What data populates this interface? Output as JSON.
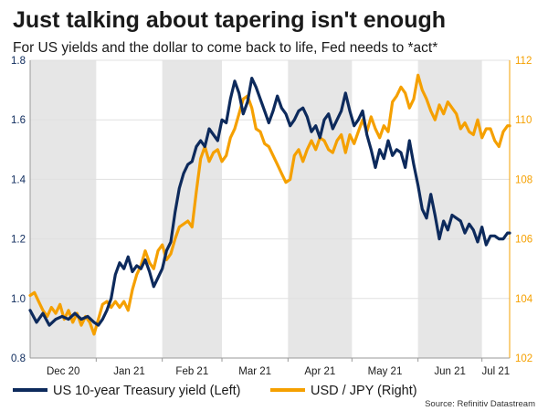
{
  "chart_data": {
    "type": "line",
    "title": "Just talking about tapering isn't enough",
    "subtitle": "For US yields and the dollar to come back to life, Fed needs to *act*",
    "source": "Source: Refinitiv Datastream",
    "colors": {
      "left": "#0d2a5c",
      "right": "#f5a000",
      "shade": "#e6e6e6",
      "grid": "#e0e0e0",
      "axis": "#999999"
    },
    "x_labels": [
      "Dec 20",
      "Jan 21",
      "Feb 21",
      "Mar 21",
      "Apr 21",
      "May 21",
      "Jun 21",
      "Jul 21"
    ],
    "x_range": [
      0,
      225
    ],
    "shaded_bands": [
      [
        0,
        31
      ],
      [
        62,
        90
      ],
      [
        121,
        151
      ],
      [
        182,
        212
      ],
      [
        243,
        273
      ]
    ],
    "y_left": {
      "min": 0.8,
      "max": 1.8,
      "ticks": [
        "0.8",
        "1.0",
        "1.2",
        "1.4",
        "1.6",
        "1.8"
      ]
    },
    "y_right": {
      "min": 102,
      "max": 112,
      "ticks": [
        "102",
        "104",
        "106",
        "108",
        "110",
        "112"
      ]
    },
    "series": [
      {
        "name": "US 10-year Treasury yield (Left)",
        "axis": "left",
        "x": [
          0,
          3,
          6,
          9,
          12,
          15,
          18,
          21,
          24,
          27,
          30,
          32,
          34,
          36,
          38,
          40,
          42,
          44,
          46,
          48,
          50,
          52,
          54,
          56,
          58,
          60,
          62,
          64,
          66,
          68,
          70,
          72,
          74,
          76,
          78,
          80,
          82,
          84,
          86,
          88,
          90,
          92,
          94,
          96,
          98,
          100,
          102,
          104,
          106,
          108,
          110,
          112,
          114,
          116,
          118,
          120,
          122,
          124,
          126,
          128,
          130,
          132,
          134,
          136,
          138,
          140,
          142,
          144,
          146,
          148,
          150,
          152,
          154,
          156,
          158,
          160,
          162,
          164,
          166,
          168,
          170,
          172,
          174,
          176,
          178,
          180,
          182,
          184,
          186,
          188,
          190,
          192,
          194,
          196,
          198,
          200,
          202,
          204,
          206,
          208,
          210,
          212,
          214,
          216,
          218,
          220,
          222,
          224,
          225
        ],
        "values": [
          0.96,
          0.92,
          0.95,
          0.91,
          0.93,
          0.94,
          0.93,
          0.95,
          0.93,
          0.94,
          0.92,
          0.91,
          0.93,
          0.96,
          1.0,
          1.08,
          1.12,
          1.1,
          1.14,
          1.09,
          1.11,
          1.1,
          1.13,
          1.09,
          1.04,
          1.07,
          1.1,
          1.16,
          1.19,
          1.29,
          1.37,
          1.42,
          1.45,
          1.46,
          1.51,
          1.53,
          1.51,
          1.57,
          1.55,
          1.53,
          1.6,
          1.59,
          1.67,
          1.73,
          1.69,
          1.62,
          1.66,
          1.74,
          1.71,
          1.67,
          1.63,
          1.59,
          1.63,
          1.68,
          1.64,
          1.62,
          1.58,
          1.6,
          1.63,
          1.64,
          1.61,
          1.56,
          1.58,
          1.54,
          1.6,
          1.62,
          1.57,
          1.6,
          1.63,
          1.69,
          1.63,
          1.58,
          1.6,
          1.63,
          1.55,
          1.5,
          1.44,
          1.5,
          1.47,
          1.53,
          1.48,
          1.5,
          1.49,
          1.44,
          1.53,
          1.45,
          1.38,
          1.3,
          1.27,
          1.35,
          1.28,
          1.2,
          1.26,
          1.23,
          1.28,
          1.27,
          1.26,
          1.22,
          1.25,
          1.23,
          1.19,
          1.24,
          1.18,
          1.21,
          1.21,
          1.2,
          1.2,
          1.22,
          1.22
        ]
      },
      {
        "name": "USD / JPY (Right)",
        "axis": "right",
        "x": [
          0,
          2,
          4,
          6,
          8,
          10,
          12,
          14,
          16,
          18,
          20,
          22,
          24,
          26,
          28,
          30,
          32,
          34,
          36,
          38,
          40,
          42,
          44,
          46,
          48,
          50,
          52,
          54,
          56,
          58,
          60,
          62,
          64,
          66,
          68,
          70,
          72,
          74,
          76,
          78,
          80,
          82,
          84,
          86,
          88,
          90,
          92,
          94,
          96,
          98,
          100,
          102,
          104,
          106,
          108,
          110,
          112,
          114,
          116,
          118,
          120,
          122,
          124,
          126,
          128,
          130,
          132,
          134,
          136,
          138,
          140,
          142,
          144,
          146,
          148,
          150,
          152,
          154,
          156,
          158,
          160,
          162,
          164,
          166,
          168,
          170,
          172,
          174,
          176,
          178,
          180,
          182,
          184,
          186,
          188,
          190,
          192,
          194,
          196,
          198,
          200,
          202,
          204,
          206,
          208,
          210,
          212,
          214,
          216,
          218,
          220,
          222,
          224,
          225
        ],
        "values": [
          104.1,
          104.2,
          103.9,
          103.6,
          103.4,
          103.7,
          103.5,
          103.8,
          103.3,
          103.6,
          103.2,
          103.5,
          103.1,
          103.4,
          103.2,
          102.8,
          103.3,
          103.8,
          103.9,
          103.7,
          103.9,
          103.7,
          103.9,
          103.6,
          104.3,
          104.8,
          105.1,
          105.6,
          105.2,
          105.0,
          105.6,
          105.8,
          105.3,
          105.5,
          106.0,
          106.4,
          106.5,
          106.6,
          106.4,
          107.6,
          108.7,
          109.1,
          108.6,
          108.9,
          109.0,
          108.6,
          108.8,
          109.4,
          109.7,
          110.2,
          110.7,
          110.8,
          110.4,
          109.7,
          109.6,
          109.2,
          109.1,
          108.8,
          108.5,
          108.2,
          107.9,
          108.0,
          108.8,
          109.0,
          108.6,
          109.0,
          109.3,
          109.0,
          109.4,
          109.3,
          109.0,
          108.9,
          109.3,
          109.5,
          108.9,
          109.5,
          109.2,
          109.6,
          110.0,
          109.6,
          110.1,
          109.7,
          109.4,
          109.8,
          109.6,
          110.6,
          110.8,
          111.1,
          110.9,
          110.4,
          110.7,
          111.5,
          111.0,
          110.7,
          110.3,
          110.0,
          110.5,
          110.2,
          110.6,
          110.4,
          110.2,
          109.7,
          109.9,
          109.6,
          109.5,
          110.0,
          109.4,
          109.7,
          109.7,
          109.3,
          109.1,
          109.6,
          109.8,
          109.8
        ]
      }
    ]
  }
}
